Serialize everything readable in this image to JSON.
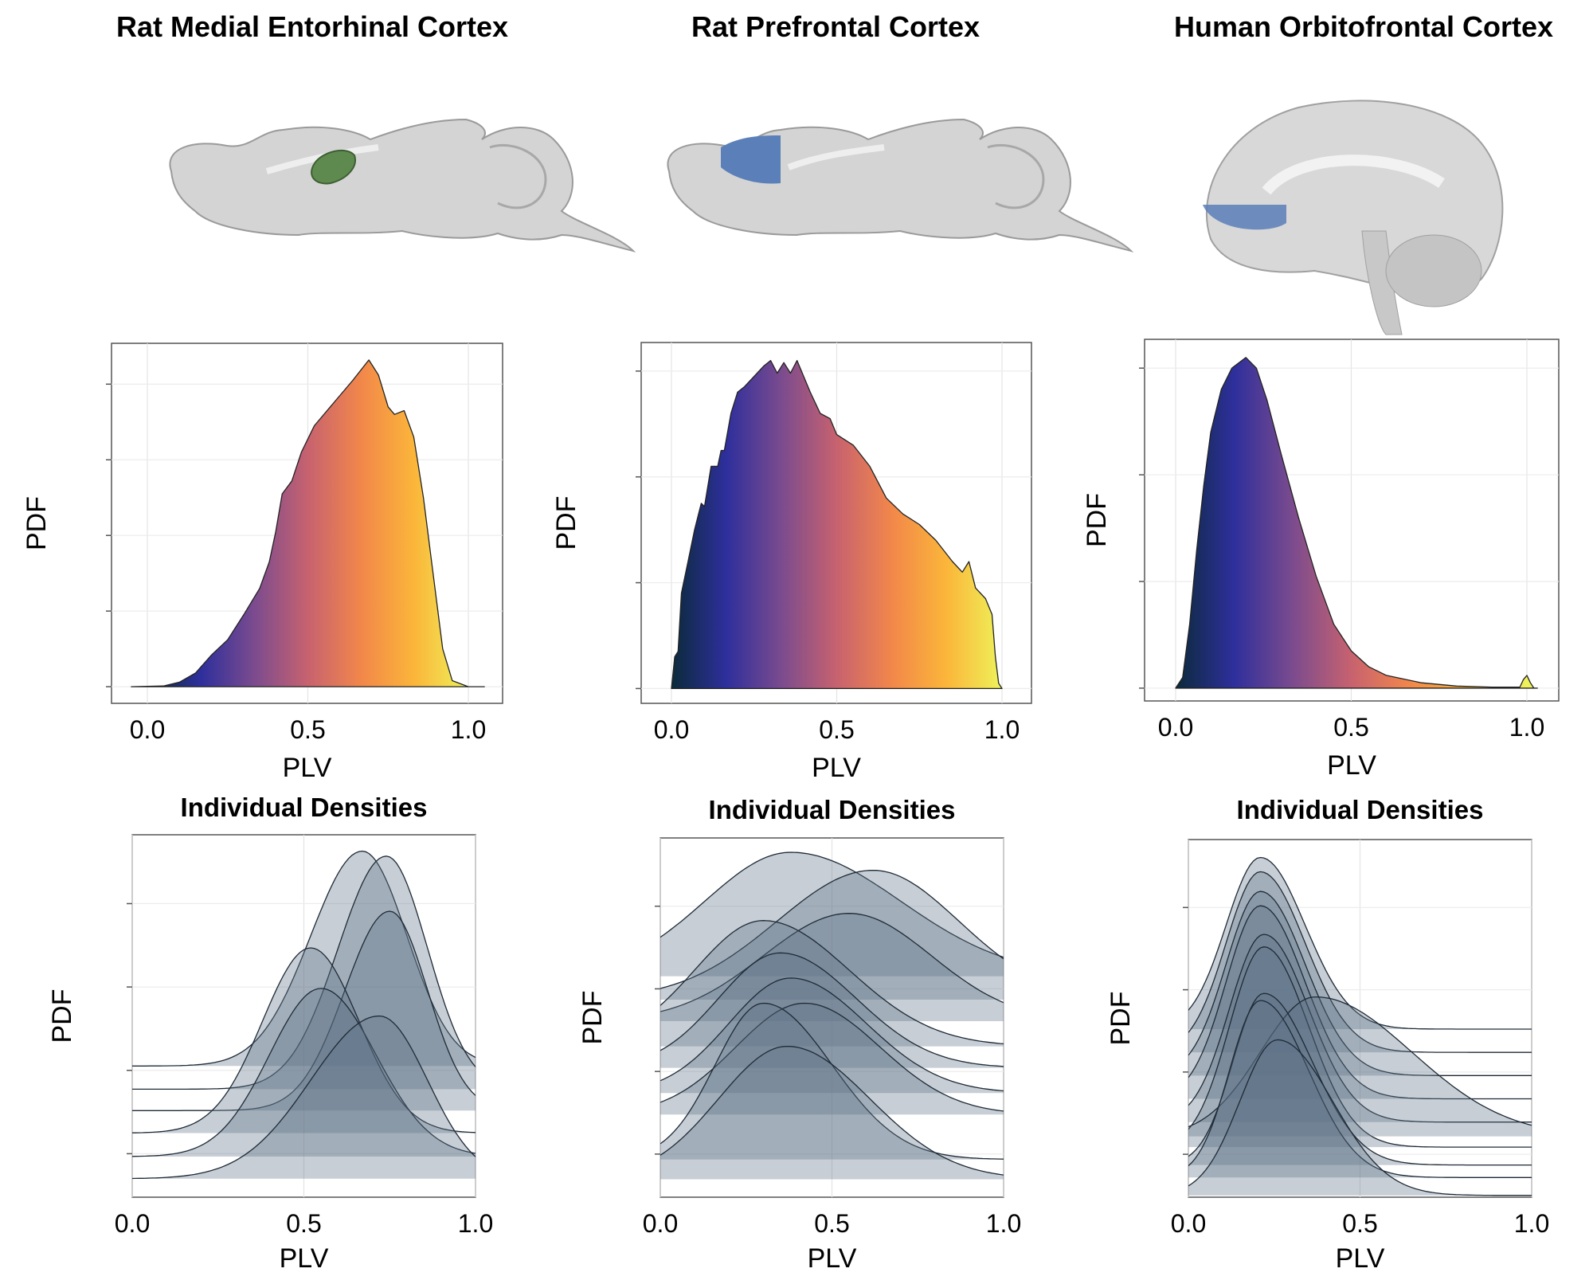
{
  "colors": {
    "gradient": [
      "#0b2a3a",
      "#2e2f9c",
      "#7b4b8e",
      "#c7626f",
      "#f2874a",
      "#fbb63a",
      "#eef25a"
    ],
    "ridge_fill": "#5f7387",
    "rat_mec_region": "#5e8a4f",
    "pfc_region": "#5b7fb8",
    "ofc_region": "#5b7fb8",
    "brain_gray": "#d4d4d4"
  },
  "columns": [
    {
      "title": "Rat Medial Entorhinal Cortex",
      "illustration": "rat-brain-sagittal-mec-highlight"
    },
    {
      "title": "Rat Prefrontal Cortex",
      "illustration": "rat-brain-sagittal-pfc-highlight"
    },
    {
      "title": "Human Orbitofrontal Cortex",
      "illustration": "human-brain-sagittal-ofc-highlight"
    }
  ],
  "chart_data": [
    {
      "type": "area",
      "title": "",
      "xlabel": "PLV",
      "ylabel": "PDF",
      "xticks": [
        "0.0",
        "0.5",
        "1.0"
      ],
      "xlim": [
        -0.1,
        1.12
      ],
      "ylim": [
        -0.22,
        4.54
      ],
      "grid": true,
      "fill": "plasma gradient by PLV",
      "points": [
        [
          -0.05,
          0
        ],
        [
          0.05,
          0.01
        ],
        [
          0.1,
          0.06
        ],
        [
          0.15,
          0.18
        ],
        [
          0.2,
          0.42
        ],
        [
          0.25,
          0.62
        ],
        [
          0.3,
          0.95
        ],
        [
          0.35,
          1.3
        ],
        [
          0.38,
          1.65
        ],
        [
          0.4,
          2.05
        ],
        [
          0.42,
          2.55
        ],
        [
          0.45,
          2.72
        ],
        [
          0.48,
          3.1
        ],
        [
          0.52,
          3.45
        ],
        [
          0.58,
          3.75
        ],
        [
          0.64,
          4.05
        ],
        [
          0.69,
          4.32
        ],
        [
          0.72,
          4.12
        ],
        [
          0.75,
          3.7
        ],
        [
          0.77,
          3.6
        ],
        [
          0.8,
          3.65
        ],
        [
          0.83,
          3.3
        ],
        [
          0.86,
          2.5
        ],
        [
          0.89,
          1.5
        ],
        [
          0.92,
          0.5
        ],
        [
          0.95,
          0.08
        ],
        [
          1.0,
          0
        ],
        [
          1.05,
          0
        ]
      ]
    },
    {
      "type": "area",
      "title": "",
      "xlabel": "PLV",
      "ylabel": "PDF",
      "xticks": [
        "0.0",
        "0.5",
        "1.0"
      ],
      "xlim": [
        -0.09,
        1.09
      ],
      "ylim": [
        -0.14,
        3.27
      ],
      "grid": true,
      "fill": "plasma gradient by PLV",
      "points": [
        [
          0,
          0
        ],
        [
          0.01,
          0.3
        ],
        [
          0.02,
          0.35
        ],
        [
          0.03,
          0.9
        ],
        [
          0.05,
          1.2
        ],
        [
          0.07,
          1.5
        ],
        [
          0.09,
          1.75
        ],
        [
          0.1,
          1.72
        ],
        [
          0.12,
          2.1
        ],
        [
          0.14,
          2.1
        ],
        [
          0.15,
          2.25
        ],
        [
          0.16,
          2.25
        ],
        [
          0.18,
          2.6
        ],
        [
          0.2,
          2.8
        ],
        [
          0.22,
          2.85
        ],
        [
          0.25,
          2.95
        ],
        [
          0.28,
          3.05
        ],
        [
          0.3,
          3.1
        ],
        [
          0.32,
          2.98
        ],
        [
          0.34,
          3.08
        ],
        [
          0.36,
          2.98
        ],
        [
          0.38,
          3.1
        ],
        [
          0.4,
          2.95
        ],
        [
          0.42,
          2.8
        ],
        [
          0.45,
          2.6
        ],
        [
          0.48,
          2.55
        ],
        [
          0.5,
          2.4
        ],
        [
          0.55,
          2.3
        ],
        [
          0.6,
          2.1
        ],
        [
          0.65,
          1.8
        ],
        [
          0.7,
          1.65
        ],
        [
          0.75,
          1.55
        ],
        [
          0.8,
          1.4
        ],
        [
          0.85,
          1.2
        ],
        [
          0.88,
          1.1
        ],
        [
          0.9,
          1.2
        ],
        [
          0.92,
          0.95
        ],
        [
          0.95,
          0.85
        ],
        [
          0.97,
          0.7
        ],
        [
          0.98,
          0.3
        ],
        [
          0.99,
          0.05
        ],
        [
          1.0,
          0
        ]
      ]
    },
    {
      "type": "area",
      "title": "",
      "xlabel": "PLV",
      "ylabel": "PDF",
      "xticks": [
        "0.0",
        "0.5",
        "1.0"
      ],
      "xlim": [
        -0.08,
        1.08
      ],
      "ylim": [
        -0.12,
        3.27
      ],
      "grid": true,
      "fill": "plasma gradient by PLV",
      "points": [
        [
          0,
          0
        ],
        [
          0.02,
          0.1
        ],
        [
          0.04,
          0.6
        ],
        [
          0.06,
          1.3
        ],
        [
          0.08,
          1.9
        ],
        [
          0.1,
          2.4
        ],
        [
          0.13,
          2.8
        ],
        [
          0.16,
          3.0
        ],
        [
          0.2,
          3.1
        ],
        [
          0.23,
          3.0
        ],
        [
          0.26,
          2.7
        ],
        [
          0.3,
          2.2
        ],
        [
          0.35,
          1.6
        ],
        [
          0.4,
          1.05
        ],
        [
          0.45,
          0.6
        ],
        [
          0.5,
          0.35
        ],
        [
          0.55,
          0.2
        ],
        [
          0.6,
          0.12
        ],
        [
          0.7,
          0.05
        ],
        [
          0.8,
          0.02
        ],
        [
          0.9,
          0.01
        ],
        [
          0.98,
          0.01
        ],
        [
          0.99,
          0.08
        ],
        [
          1.0,
          0.12
        ],
        [
          1.01,
          0.05
        ],
        [
          1.02,
          0
        ],
        [
          1.03,
          0
        ]
      ]
    },
    {
      "type": "area",
      "title": "Individual Densities",
      "xlabel": "PLV",
      "ylabel": "PDF",
      "xticks": [
        "0.0",
        "0.5",
        "1.0"
      ],
      "xlim": [
        0,
        1
      ],
      "ylim": [
        0,
        10
      ],
      "grid": true,
      "ridges": [
        {
          "baseline": 3.62,
          "peak": 9.55,
          "mean": 0.67,
          "sd_left": 0.15,
          "sd_right": 0.13
        },
        {
          "baseline": 2.98,
          "peak": 9.41,
          "mean": 0.74,
          "sd_left": 0.14,
          "sd_right": 0.12
        },
        {
          "baseline": 2.39,
          "peak": 7.89,
          "mean": 0.75,
          "sd_left": 0.13,
          "sd_right": 0.11
        },
        {
          "baseline": 1.77,
          "peak": 6.88,
          "mean": 0.52,
          "sd_left": 0.14,
          "sd_right": 0.14
        },
        {
          "baseline": 1.12,
          "peak": 5.76,
          "mean": 0.55,
          "sd_left": 0.15,
          "sd_right": 0.16
        },
        {
          "baseline": 0.51,
          "peak": 5.0,
          "mean": 0.72,
          "sd_left": 0.2,
          "sd_right": 0.14
        }
      ]
    },
    {
      "type": "area",
      "title": "Individual Densities",
      "xlabel": "PLV",
      "ylabel": "PDF",
      "xticks": [
        "0.0",
        "0.5",
        "1.0"
      ],
      "xlim": [
        0,
        1
      ],
      "ylim": [
        0,
        10
      ],
      "grid": true,
      "ridges": [
        {
          "baseline": 6.15,
          "peak": 9.6,
          "mean": 0.38,
          "sd_left": 0.25,
          "sd_right": 0.32
        },
        {
          "baseline": 5.5,
          "peak": 9.1,
          "mean": 0.62,
          "sd_left": 0.28,
          "sd_right": 0.25
        },
        {
          "baseline": 4.9,
          "peak": 7.9,
          "mean": 0.55,
          "sd_left": 0.25,
          "sd_right": 0.24
        },
        {
          "baseline": 4.2,
          "peak": 7.7,
          "mean": 0.3,
          "sd_left": 0.2,
          "sd_right": 0.25
        },
        {
          "baseline": 3.6,
          "peak": 6.8,
          "mean": 0.35,
          "sd_left": 0.18,
          "sd_right": 0.22
        },
        {
          "baseline": 2.9,
          "peak": 6.1,
          "mean": 0.38,
          "sd_left": 0.18,
          "sd_right": 0.22
        },
        {
          "baseline": 2.3,
          "peak": 5.4,
          "mean": 0.42,
          "sd_left": 0.2,
          "sd_right": 0.22
        },
        {
          "baseline": 1.05,
          "peak": 5.4,
          "mean": 0.3,
          "sd_left": 0.14,
          "sd_right": 0.2
        },
        {
          "baseline": 0.5,
          "peak": 4.2,
          "mean": 0.37,
          "sd_left": 0.2,
          "sd_right": 0.24
        }
      ]
    },
    {
      "type": "area",
      "title": "Individual Densities",
      "xlabel": "PLV",
      "ylabel": "PDF",
      "xticks": [
        "0.0",
        "0.5",
        "1.0"
      ],
      "xlim": [
        0,
        1
      ],
      "ylim": [
        0,
        10
      ],
      "grid": true,
      "ridges": [
        {
          "baseline": 4.7,
          "peak": 9.5,
          "mean": 0.21,
          "sd_left": 0.1,
          "sd_right": 0.13
        },
        {
          "baseline": 4.05,
          "peak": 9.1,
          "mean": 0.21,
          "sd_left": 0.1,
          "sd_right": 0.13
        },
        {
          "baseline": 3.4,
          "peak": 8.55,
          "mean": 0.21,
          "sd_left": 0.1,
          "sd_right": 0.13
        },
        {
          "baseline": 2.75,
          "peak": 8.15,
          "mean": 0.21,
          "sd_left": 0.1,
          "sd_right": 0.13
        },
        {
          "baseline": 2.1,
          "peak": 7.35,
          "mean": 0.22,
          "sd_left": 0.1,
          "sd_right": 0.13
        },
        {
          "baseline": 1.4,
          "peak": 7.0,
          "mean": 0.22,
          "sd_left": 0.1,
          "sd_right": 0.13
        },
        {
          "baseline": 1.7,
          "peak": 5.6,
          "mean": 0.37,
          "sd_left": 0.16,
          "sd_right": 0.28
        },
        {
          "baseline": 0.9,
          "peak": 5.7,
          "mean": 0.22,
          "sd_left": 0.09,
          "sd_right": 0.14
        },
        {
          "baseline": 0.55,
          "peak": 5.5,
          "mean": 0.21,
          "sd_left": 0.09,
          "sd_right": 0.14
        },
        {
          "baseline": 0.05,
          "peak": 4.4,
          "mean": 0.26,
          "sd_left": 0.11,
          "sd_right": 0.16
        }
      ]
    }
  ]
}
